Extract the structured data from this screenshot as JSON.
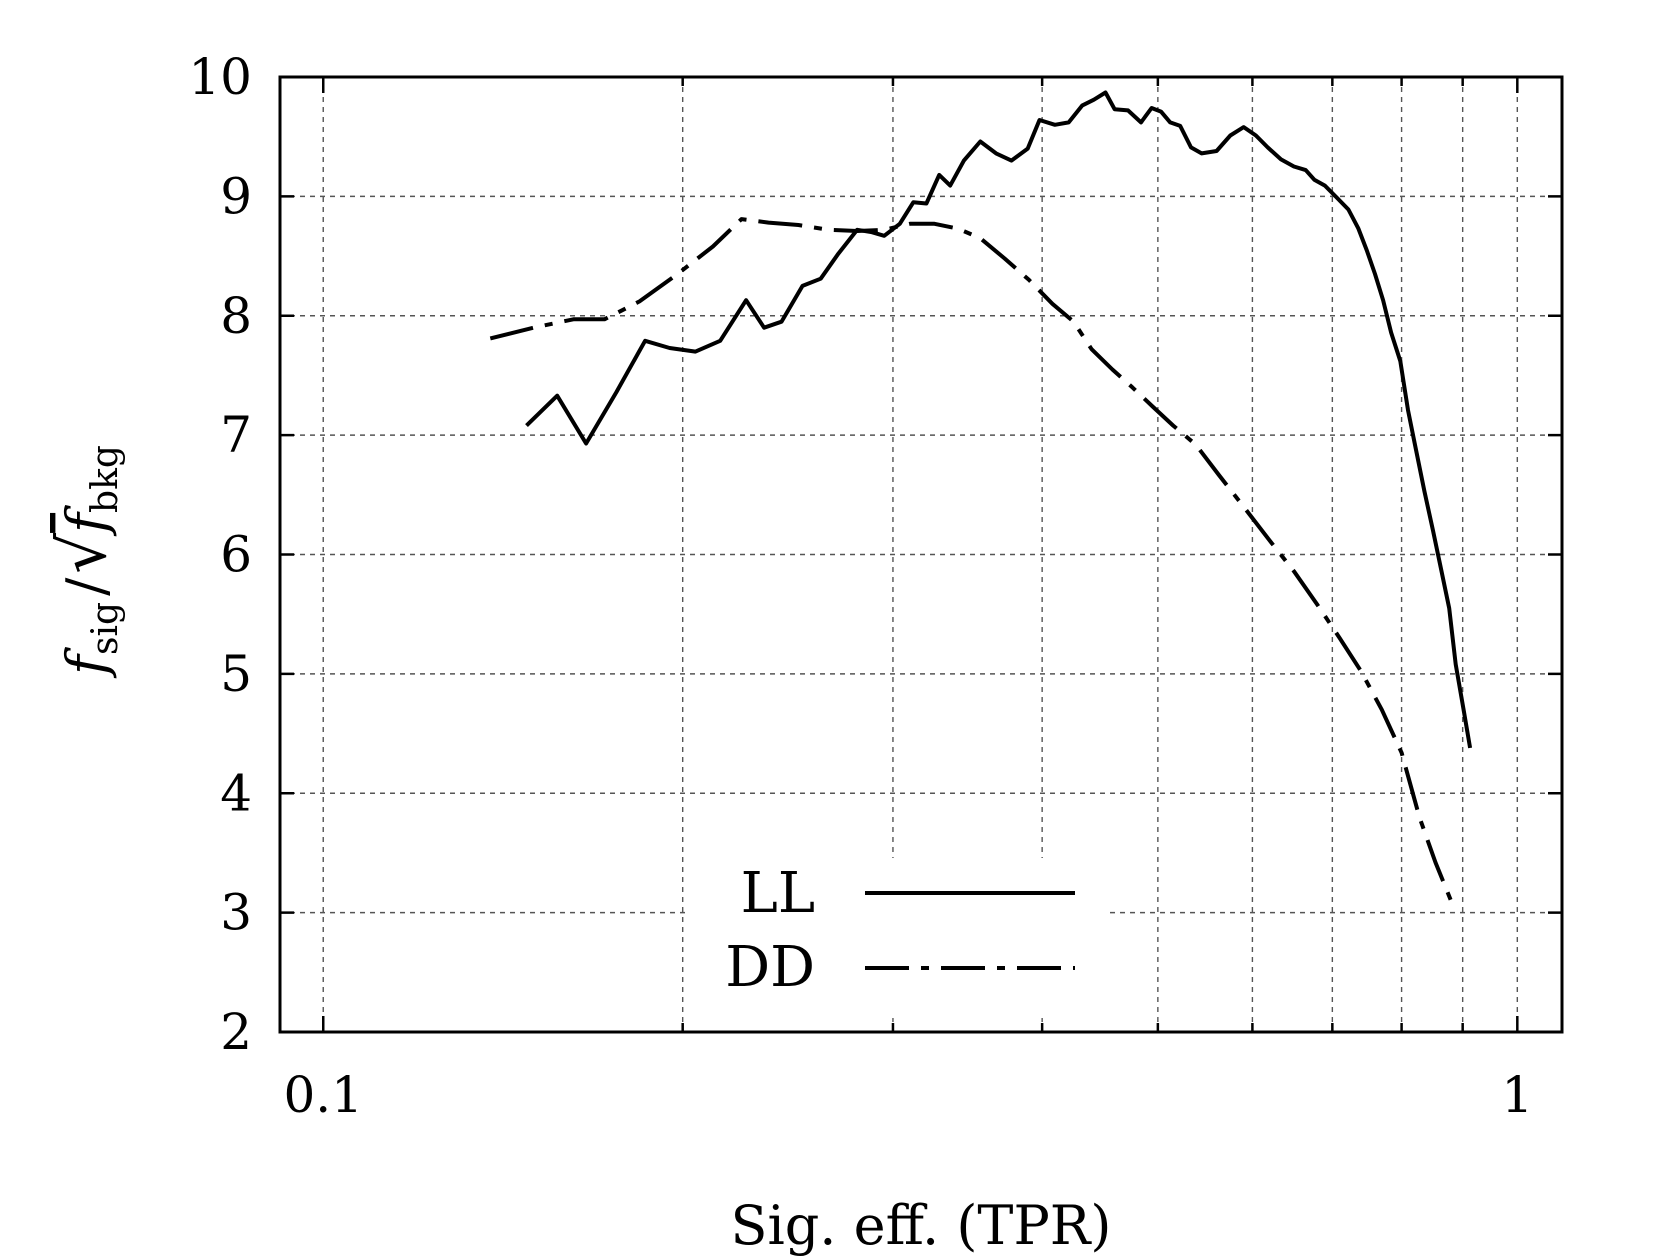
{
  "chart_data": {
    "type": "line",
    "title": "",
    "xlabel": "Sig. eff. (TPR)",
    "ylabel_parts": {
      "numerator": "f",
      "numerator_sub": "sig",
      "separator": "/",
      "denominator": "f",
      "denominator_sub": "bkg"
    },
    "x_scale": "log",
    "xlim": [
      0.092,
      1.09
    ],
    "ylim": [
      2,
      10
    ],
    "x_tick_labels": [
      {
        "value": 0.1,
        "label": "0.1"
      },
      {
        "value": 1,
        "label": "1"
      }
    ],
    "x_minor_ticks": [
      0.2,
      0.3,
      0.4,
      0.5,
      0.6,
      0.7,
      0.8,
      0.9
    ],
    "y_ticks": [
      2,
      3,
      4,
      5,
      6,
      7,
      8,
      9,
      10
    ],
    "y_tick_labels": [
      "2",
      "3",
      "4",
      "5",
      "6",
      "7",
      "8",
      "9",
      "10"
    ],
    "grid": true,
    "legend_position": "bottom-center",
    "series": [
      {
        "name": "LL",
        "style": "solid",
        "color": "#000000",
        "points": [
          [
            0.148,
            7.08
          ],
          [
            0.157,
            7.33
          ],
          [
            0.166,
            6.93
          ],
          [
            0.176,
            7.36
          ],
          [
            0.186,
            7.79
          ],
          [
            0.195,
            7.73
          ],
          [
            0.205,
            7.7
          ],
          [
            0.215,
            7.79
          ],
          [
            0.226,
            8.13
          ],
          [
            0.234,
            7.9
          ],
          [
            0.242,
            7.95
          ],
          [
            0.252,
            8.25
          ],
          [
            0.261,
            8.31
          ],
          [
            0.27,
            8.52
          ],
          [
            0.28,
            8.72
          ],
          [
            0.288,
            8.7
          ],
          [
            0.295,
            8.67
          ],
          [
            0.304,
            8.77
          ],
          [
            0.312,
            8.95
          ],
          [
            0.32,
            8.94
          ],
          [
            0.328,
            9.18
          ],
          [
            0.335,
            9.09
          ],
          [
            0.344,
            9.3
          ],
          [
            0.355,
            9.46
          ],
          [
            0.366,
            9.36
          ],
          [
            0.377,
            9.3
          ],
          [
            0.389,
            9.4
          ],
          [
            0.398,
            9.64
          ],
          [
            0.41,
            9.6
          ],
          [
            0.421,
            9.62
          ],
          [
            0.432,
            9.76
          ],
          [
            0.442,
            9.81
          ],
          [
            0.452,
            9.87
          ],
          [
            0.46,
            9.73
          ],
          [
            0.472,
            9.72
          ],
          [
            0.484,
            9.62
          ],
          [
            0.494,
            9.74
          ],
          [
            0.503,
            9.71
          ],
          [
            0.512,
            9.62
          ],
          [
            0.522,
            9.59
          ],
          [
            0.533,
            9.41
          ],
          [
            0.544,
            9.36
          ],
          [
            0.56,
            9.38
          ],
          [
            0.575,
            9.51
          ],
          [
            0.59,
            9.58
          ],
          [
            0.604,
            9.51
          ],
          [
            0.618,
            9.41
          ],
          [
            0.634,
            9.31
          ],
          [
            0.65,
            9.25
          ],
          [
            0.665,
            9.22
          ],
          [
            0.676,
            9.14
          ],
          [
            0.69,
            9.09
          ],
          [
            0.706,
            8.99
          ],
          [
            0.722,
            8.89
          ],
          [
            0.736,
            8.73
          ],
          [
            0.748,
            8.55
          ],
          [
            0.76,
            8.35
          ],
          [
            0.772,
            8.13
          ],
          [
            0.784,
            7.86
          ],
          [
            0.798,
            7.62
          ],
          [
            0.81,
            7.21
          ],
          [
            0.822,
            6.89
          ],
          [
            0.836,
            6.53
          ],
          [
            0.85,
            6.2
          ],
          [
            0.864,
            5.86
          ],
          [
            0.877,
            5.55
          ],
          [
            0.888,
            5.08
          ],
          [
            0.902,
            4.69
          ],
          [
            0.913,
            4.38
          ]
        ]
      },
      {
        "name": "DD",
        "style": "dash-dot",
        "color": "#000000",
        "points": [
          [
            0.138,
            7.81
          ],
          [
            0.15,
            7.9
          ],
          [
            0.162,
            7.97
          ],
          [
            0.172,
            7.97
          ],
          [
            0.184,
            8.12
          ],
          [
            0.198,
            8.35
          ],
          [
            0.212,
            8.58
          ],
          [
            0.224,
            8.81
          ],
          [
            0.236,
            8.78
          ],
          [
            0.25,
            8.76
          ],
          [
            0.265,
            8.72
          ],
          [
            0.28,
            8.71
          ],
          [
            0.295,
            8.72
          ],
          [
            0.31,
            8.77
          ],
          [
            0.325,
            8.77
          ],
          [
            0.34,
            8.73
          ],
          [
            0.355,
            8.65
          ],
          [
            0.372,
            8.48
          ],
          [
            0.39,
            8.3
          ],
          [
            0.408,
            8.1
          ],
          [
            0.425,
            7.95
          ],
          [
            0.44,
            7.72
          ],
          [
            0.458,
            7.55
          ],
          [
            0.476,
            7.4
          ],
          [
            0.495,
            7.24
          ],
          [
            0.515,
            7.08
          ],
          [
            0.538,
            6.92
          ],
          [
            0.562,
            6.67
          ],
          [
            0.59,
            6.4
          ],
          [
            0.62,
            6.12
          ],
          [
            0.65,
            5.86
          ],
          [
            0.68,
            5.58
          ],
          [
            0.71,
            5.3
          ],
          [
            0.74,
            5.02
          ],
          [
            0.77,
            4.7
          ],
          [
            0.8,
            4.34
          ],
          [
            0.828,
            3.8
          ],
          [
            0.854,
            3.42
          ],
          [
            0.88,
            3.1
          ]
        ]
      }
    ]
  }
}
